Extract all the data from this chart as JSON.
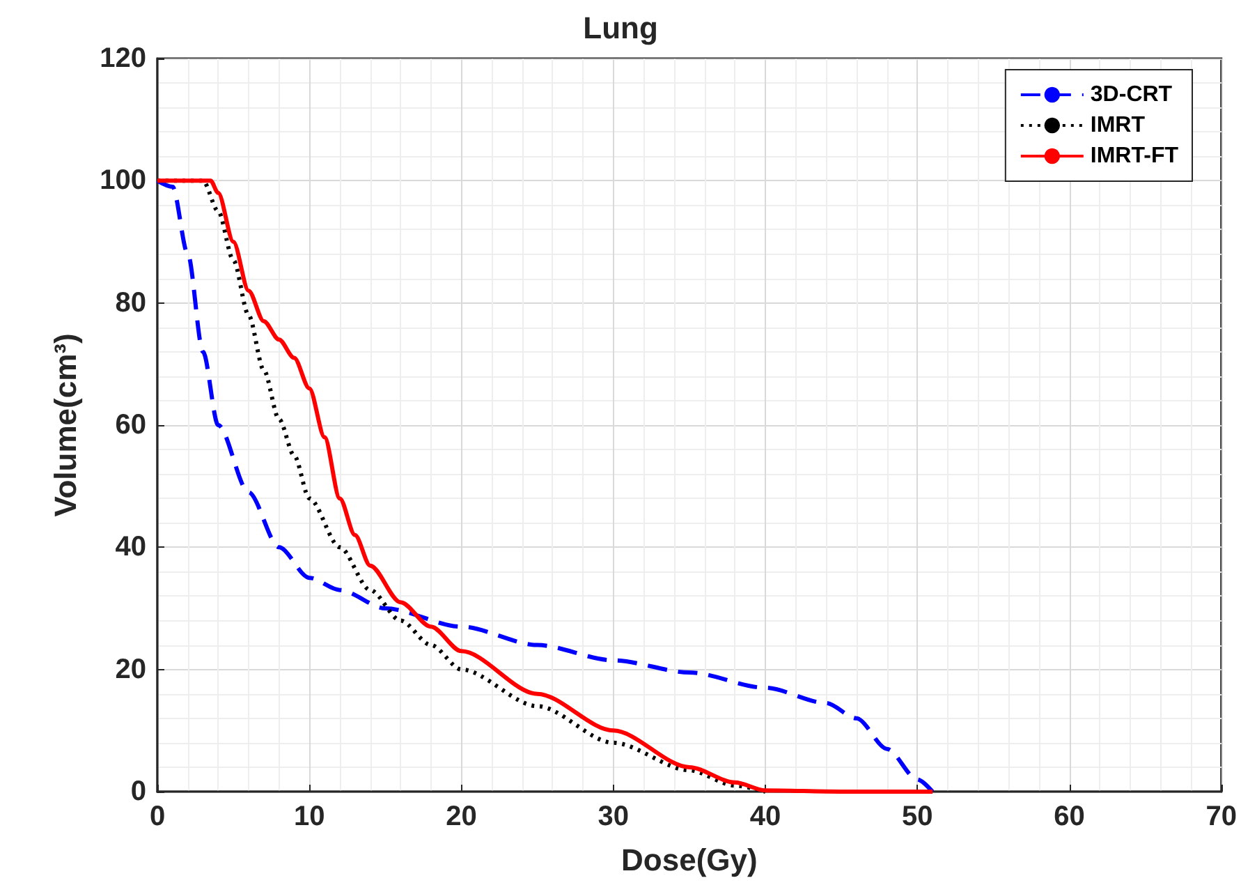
{
  "chart_data": {
    "type": "line",
    "title": "Lung",
    "xlabel": "Dose(Gy)",
    "ylabel": "Volume(cm³)",
    "xlim": [
      0,
      70
    ],
    "xticks": [
      0,
      10,
      20,
      30,
      40,
      50,
      60,
      70
    ],
    "ylim": [
      0,
      120
    ],
    "yticks": [
      0,
      20,
      40,
      60,
      80,
      100,
      120
    ],
    "grid": true,
    "legend": "top right",
    "marker": "none",
    "series": [
      {
        "name": "3D-CRT",
        "color": "#0000ff",
        "line_style": "dashed",
        "x": [
          0,
          1,
          2,
          3,
          4,
          6,
          8,
          10,
          12,
          15,
          20,
          25,
          30,
          35,
          40,
          44,
          46,
          48,
          50,
          51
        ],
        "values": [
          100,
          99,
          88,
          72,
          60,
          49,
          40,
          35,
          33,
          30,
          27,
          24,
          21.5,
          19.5,
          17,
          14.5,
          12,
          7,
          2,
          0
        ]
      },
      {
        "name": "IMRT",
        "color": "#000000",
        "line_style": "dotted",
        "x": [
          0,
          3,
          4,
          5,
          6,
          7,
          8,
          9,
          10,
          12,
          14,
          16,
          18,
          20,
          25,
          30,
          35,
          38,
          40
        ],
        "values": [
          100,
          100,
          95,
          87,
          78,
          69,
          61,
          55,
          48,
          40,
          33,
          28,
          24,
          20,
          14,
          8,
          3.5,
          1,
          0
        ]
      },
      {
        "name": "IMRT-FT",
        "color": "#ff0000",
        "line_style": "solid",
        "x": [
          0,
          3.5,
          4,
          5,
          6,
          7,
          8,
          9,
          10,
          11,
          12,
          13,
          14,
          16,
          18,
          20,
          25,
          30,
          35,
          38,
          40,
          45,
          51
        ],
        "values": [
          100,
          100,
          98,
          90,
          82,
          77,
          74,
          71,
          66,
          58,
          48,
          42,
          37,
          31,
          27,
          23,
          16,
          10,
          4,
          1.5,
          0.2,
          0,
          0
        ]
      }
    ]
  }
}
